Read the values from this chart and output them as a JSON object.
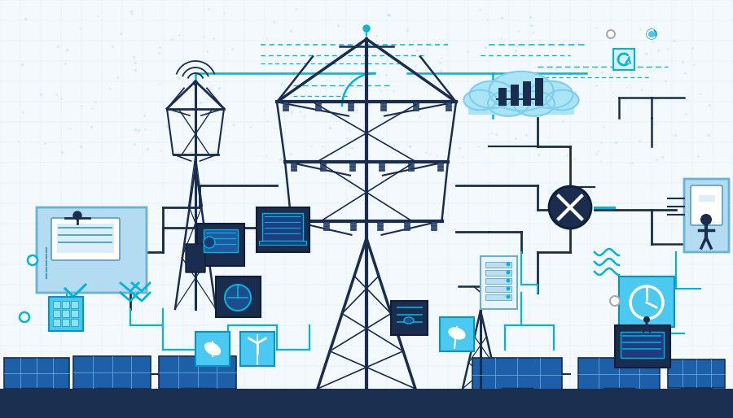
{
  "bg_color": "#f4f9fe",
  "dark_blue": "#1a2d4f",
  "mid_blue": "#1e4d8c",
  "cyan": "#00b4d8",
  "light_blue": "#90e0ef",
  "light_blue_box": "#b8dff5",
  "sky_blue": "#48cae4",
  "panel_blue": "#1d5fa8",
  "icon_bg": "#4cc9f0",
  "icon_bg2": "#0096c7",
  "cloud_blue": "#abe4f5",
  "white": "#ffffff",
  "grid_color": "#daeef8",
  "line_color": "#00b4d8",
  "dark_line": "#1a2d4f",
  "ground_color": "#1a3050",
  "insulator_color": "#2a4a7f"
}
